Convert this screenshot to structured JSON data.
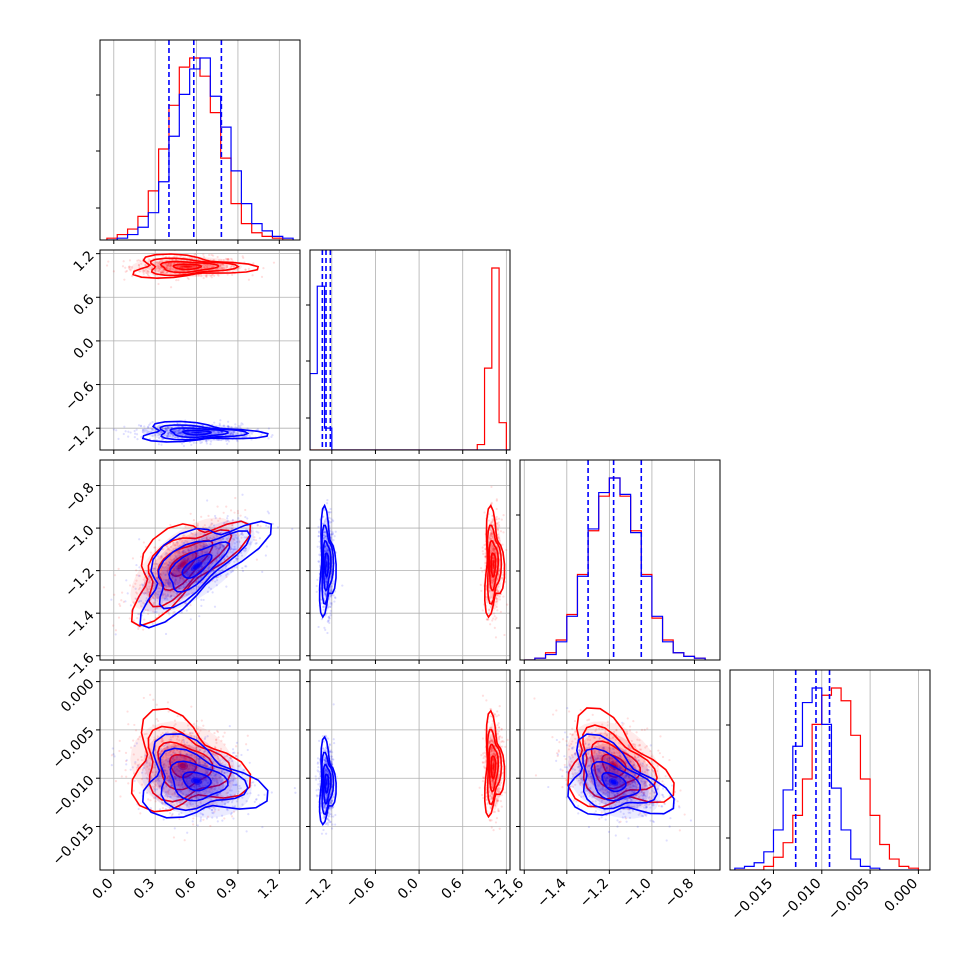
{
  "colors": {
    "series_a": "#ff0000",
    "series_b": "#0000ff",
    "grid": "#b0b0b0",
    "frame": "#000000"
  },
  "chart_data": {
    "type": "corner",
    "grid": true,
    "parameters": [
      {
        "range": [
          -0.1,
          1.35
        ],
        "ticks": [
          "0.0",
          "0.3",
          "0.6",
          "0.9",
          "1.2"
        ],
        "tick_values": [
          0.0,
          0.3,
          0.6,
          0.9,
          1.2
        ]
      },
      {
        "range": [
          -1.5,
          1.25
        ],
        "ticks": [
          "−1.2",
          "−0.6",
          "0.0",
          "0.6",
          "1.2"
        ],
        "tick_values": [
          -1.2,
          -0.6,
          0.0,
          0.6,
          1.2
        ]
      },
      {
        "range": [
          -1.62,
          -0.68
        ],
        "ticks": [
          "−1.6",
          "−1.4",
          "−1.2",
          "−1.0",
          "−0.8"
        ],
        "tick_values": [
          -1.6,
          -1.4,
          -1.2,
          -1.0,
          -0.8
        ]
      },
      {
        "range": [
          -0.0195,
          0.0012
        ],
        "ticks": [
          "−0.015",
          "−0.010",
          "−0.005",
          "0.000"
        ],
        "tick_values": [
          -0.015,
          -0.01,
          -0.005,
          0.0
        ]
      }
    ],
    "histograms": [
      {
        "param": 0,
        "bin_edges": [
          -0.05,
          0.025,
          0.1,
          0.175,
          0.25,
          0.325,
          0.4,
          0.475,
          0.55,
          0.625,
          0.7,
          0.775,
          0.85,
          0.925,
          1.0,
          1.075,
          1.15,
          1.225,
          1.3
        ],
        "series": [
          {
            "color_key": "series_a",
            "counts": [
              0.01,
              0.03,
              0.06,
              0.13,
              0.27,
              0.5,
              0.74,
              0.95,
              1.0,
              0.9,
              0.7,
              0.45,
              0.2,
              0.09,
              0.04,
              0.02,
              0.01,
              0.0
            ]
          },
          {
            "color_key": "series_b",
            "counts": [
              0.0,
              0.01,
              0.03,
              0.07,
              0.15,
              0.32,
              0.57,
              0.8,
              0.94,
              1.0,
              0.79,
              0.62,
              0.38,
              0.2,
              0.09,
              0.05,
              0.02,
              0.01
            ]
          }
        ],
        "quantiles": [
          0.4,
          0.58,
          0.78
        ]
      },
      {
        "param": 1,
        "bin_edges": [
          -1.5,
          -1.4,
          -1.3,
          -1.2,
          -1.1,
          -1.0,
          -0.9,
          -0.8,
          -0.7,
          -0.6,
          -0.5,
          -0.4,
          -0.3,
          -0.2,
          -0.1,
          0.0,
          0.1,
          0.2,
          0.3,
          0.4,
          0.5,
          0.6,
          0.7,
          0.8,
          0.9,
          1.0,
          1.1,
          1.2,
          1.25
        ],
        "series": [
          {
            "color_key": "series_a",
            "counts": [
              0,
              0,
              0,
              0,
              0,
              0,
              0,
              0,
              0,
              0,
              0,
              0,
              0,
              0,
              0,
              0,
              0,
              0,
              0,
              0,
              0,
              0,
              0,
              0.03,
              0.45,
              1.0,
              0.15,
              0
            ]
          },
          {
            "color_key": "series_b",
            "counts": [
              0.42,
              0.9,
              0.12,
              0,
              0,
              0,
              0,
              0,
              0,
              0,
              0,
              0,
              0,
              0,
              0,
              0,
              0,
              0,
              0,
              0,
              0,
              0,
              0,
              0,
              0,
              0,
              0,
              0
            ]
          }
        ],
        "quantiles": [
          -1.33,
          -1.28,
          -1.22
        ]
      },
      {
        "param": 2,
        "bin_edges": [
          -1.6,
          -1.55,
          -1.5,
          -1.45,
          -1.4,
          -1.35,
          -1.3,
          -1.25,
          -1.2,
          -1.15,
          -1.1,
          -1.05,
          -1.0,
          -0.95,
          -0.9,
          -0.85,
          -0.8,
          -0.75
        ],
        "series": [
          {
            "color_key": "series_a",
            "counts": [
              0.0,
              0.01,
              0.04,
              0.11,
              0.25,
              0.47,
              0.71,
              0.9,
              1.0,
              0.9,
              0.71,
              0.47,
              0.23,
              0.11,
              0.04,
              0.02,
              0.01
            ]
          },
          {
            "color_key": "series_b",
            "counts": [
              0.0,
              0.01,
              0.03,
              0.1,
              0.24,
              0.46,
              0.72,
              0.92,
              1.0,
              0.91,
              0.7,
              0.46,
              0.24,
              0.1,
              0.04,
              0.02,
              0.01
            ]
          }
        ],
        "quantiles": [
          -1.3,
          -1.18,
          -1.05
        ]
      },
      {
        "param": 3,
        "bin_edges": [
          -0.019,
          -0.018,
          -0.017,
          -0.016,
          -0.015,
          -0.014,
          -0.013,
          -0.012,
          -0.011,
          -0.01,
          -0.009,
          -0.008,
          -0.007,
          -0.006,
          -0.005,
          -0.004,
          -0.003,
          -0.002,
          -0.001,
          0.0
        ],
        "series": [
          {
            "color_key": "series_a",
            "counts": [
              0,
              0,
              0,
              0.02,
              0.07,
              0.15,
              0.3,
              0.5,
              0.8,
              0.96,
              1.0,
              0.93,
              0.74,
              0.5,
              0.3,
              0.14,
              0.06,
              0.02,
              0.01
            ]
          },
          {
            "color_key": "series_b",
            "counts": [
              0.01,
              0.02,
              0.04,
              0.1,
              0.22,
              0.44,
              0.68,
              0.92,
              1.0,
              0.8,
              0.45,
              0.22,
              0.06,
              0.02,
              0.01,
              0,
              0,
              0,
              0
            ]
          }
        ],
        "quantiles": [
          -0.0127,
          -0.0106,
          -0.0092
        ]
      }
    ],
    "pairs": [
      {
        "x": 0,
        "y": 1,
        "series": [
          {
            "color_key": "series_a",
            "center": [
              0.53,
              1.02
            ],
            "sigma": [
              0.2,
              0.07
            ],
            "rho": 0.0
          },
          {
            "color_key": "series_b",
            "center": [
              0.6,
              -1.26
            ],
            "sigma": [
              0.2,
              0.06
            ],
            "rho": -0.1
          }
        ]
      },
      {
        "x": 0,
        "y": 2,
        "series": [
          {
            "color_key": "series_a",
            "center": [
              0.5,
              -1.17
            ],
            "sigma": [
              0.19,
              0.11
            ],
            "rho": 0.65
          },
          {
            "color_key": "series_b",
            "center": [
              0.6,
              -1.18
            ],
            "sigma": [
              0.21,
              0.11
            ],
            "rho": 0.7
          }
        ]
      },
      {
        "x": 1,
        "y": 2,
        "series": [
          {
            "color_key": "series_a",
            "center": [
              1.02,
              -1.17
            ],
            "sigma": [
              0.06,
              0.11
            ],
            "rho": 0.0
          },
          {
            "color_key": "series_b",
            "center": [
              -1.27,
              -1.17
            ],
            "sigma": [
              0.05,
              0.11
            ],
            "rho": 0.0
          }
        ]
      },
      {
        "x": 0,
        "y": 3,
        "series": [
          {
            "color_key": "series_a",
            "center": [
              0.5,
              -0.0087
            ],
            "sigma": [
              0.19,
              0.0023
            ],
            "rho": -0.15
          },
          {
            "color_key": "series_b",
            "center": [
              0.6,
              -0.0103
            ],
            "sigma": [
              0.2,
              0.0019
            ],
            "rho": -0.2
          }
        ]
      },
      {
        "x": 1,
        "y": 3,
        "series": [
          {
            "color_key": "series_a",
            "center": [
              1.02,
              -0.0088
            ],
            "sigma": [
              0.06,
              0.0023
            ],
            "rho": 0.0
          },
          {
            "color_key": "series_b",
            "center": [
              -1.27,
              -0.0105
            ],
            "sigma": [
              0.05,
              0.0019
            ],
            "rho": 0.0
          }
        ]
      },
      {
        "x": 2,
        "y": 3,
        "series": [
          {
            "color_key": "series_a",
            "center": [
              -1.18,
              -0.0087
            ],
            "sigma": [
              0.11,
              0.0023
            ],
            "rho": -0.3
          },
          {
            "color_key": "series_b",
            "center": [
              -1.18,
              -0.0104
            ],
            "sigma": [
              0.11,
              0.0019
            ],
            "rho": -0.35
          }
        ]
      }
    ]
  }
}
